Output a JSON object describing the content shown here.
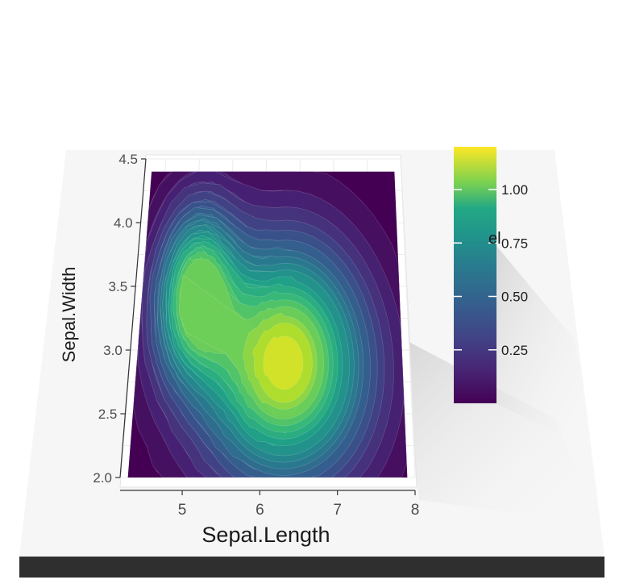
{
  "chart_data": {
    "type": "heatmap",
    "subtype": "2d-density-filled-contour",
    "title": "",
    "xlabel": "Sepal.Length",
    "ylabel": "Sepal.Width",
    "x_ticks": [
      5,
      6,
      7,
      8
    ],
    "y_ticks": [
      2.0,
      2.5,
      3.0,
      3.5,
      4.0,
      4.5
    ],
    "x_tick_labels": [
      "5",
      "6",
      "7",
      "8"
    ],
    "y_tick_labels": [
      "2.0",
      "2.5",
      "3.0",
      "3.5",
      "4.0",
      "4.5"
    ],
    "xlim": [
      4.2,
      8.0
    ],
    "ylim": [
      2.0,
      4.5
    ],
    "fill_extent": {
      "x": [
        4.3,
        7.9
      ],
      "y": [
        2.0,
        4.4
      ]
    },
    "density_peaks": [
      {
        "x": 5.05,
        "y": 3.45,
        "level": 0.95
      },
      {
        "x": 6.3,
        "y": 2.9,
        "level": 1.18
      }
    ],
    "legend": {
      "title_visible_fragment": "el",
      "position": "right",
      "colorbar": true,
      "range": [
        0.0,
        1.2
      ],
      "ticks": [
        0.25,
        0.5,
        0.75,
        1.0
      ],
      "tick_labels": [
        "0.25",
        "0.50",
        "0.75",
        "1.00"
      ]
    },
    "colormap": "viridis",
    "grid": true,
    "rendering": "3d-tilted-panel"
  },
  "colors": {
    "background": "#ffffff",
    "panel_face": "#f6f6f6",
    "panel_edge": "#2f2f2f",
    "viridis_low": "#440154",
    "viridis_high": "#fde725"
  }
}
